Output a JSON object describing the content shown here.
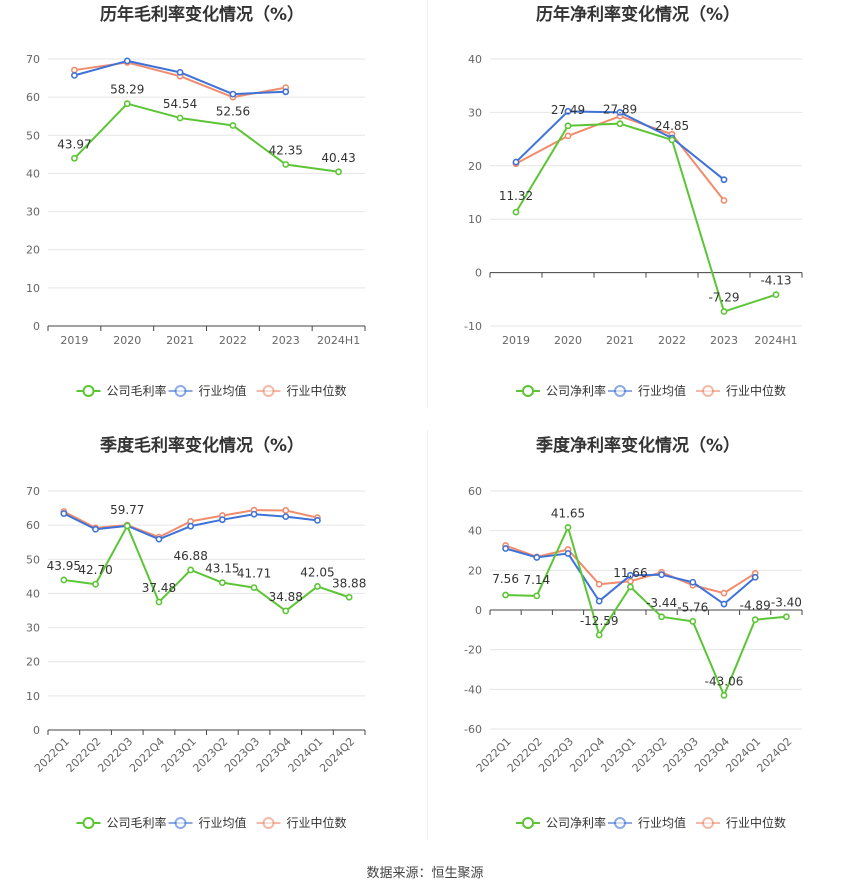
{
  "source_text": "数据来源：恒生聚源",
  "colors": {
    "company": "#5cc535",
    "industry_avg": "#3f72d9",
    "industry_median": "#f08c6c",
    "grid": "#e6e6e6",
    "axis": "#666666",
    "title": "#333333"
  },
  "chart_data": [
    {
      "type": "line",
      "title": "历年毛利率变化情况（%）",
      "categories": [
        "2019",
        "2020",
        "2021",
        "2022",
        "2023",
        "2024H1"
      ],
      "ylim": [
        0,
        70
      ],
      "yticks": [
        0,
        10,
        20,
        30,
        40,
        50,
        60,
        70
      ],
      "rotate_x": false,
      "series": [
        {
          "name": "公司毛利率",
          "key": "company",
          "values": [
            43.97,
            58.29,
            54.54,
            52.56,
            42.35,
            40.43
          ],
          "labels": [
            "43.97",
            "58.29",
            "54.54",
            "52.56",
            "42.35",
            "40.43"
          ]
        },
        {
          "name": "行业均值",
          "key": "industry_avg",
          "values": [
            65.7,
            69.5,
            66.5,
            60.8,
            61.4,
            null
          ]
        },
        {
          "name": "行业中位数",
          "key": "industry_median",
          "values": [
            67.1,
            69.1,
            65.5,
            60.0,
            62.5,
            null
          ]
        }
      ],
      "legend": [
        "公司毛利率",
        "行业均值",
        "行业中位数"
      ]
    },
    {
      "type": "line",
      "title": "历年净利率变化情况（%）",
      "categories": [
        "2019",
        "2020",
        "2021",
        "2022",
        "2023",
        "2024H1"
      ],
      "ylim": [
        -10,
        40
      ],
      "yticks": [
        -10,
        0,
        10,
        20,
        30,
        40
      ],
      "rotate_x": false,
      "series": [
        {
          "name": "公司净利率",
          "key": "company",
          "values": [
            11.32,
            27.49,
            27.89,
            24.85,
            -7.29,
            -4.13
          ],
          "labels": [
            "11.32",
            "27.49",
            "27.89",
            "24.85",
            "-7.29",
            "-4.13"
          ]
        },
        {
          "name": "行业均值",
          "key": "industry_avg",
          "values": [
            20.7,
            30.2,
            30.0,
            25.2,
            17.4,
            null
          ]
        },
        {
          "name": "行业中位数",
          "key": "industry_median",
          "values": [
            20.4,
            25.6,
            29.3,
            25.9,
            13.5,
            null
          ]
        }
      ],
      "legend": [
        "公司净利率",
        "行业均值",
        "行业中位数"
      ]
    },
    {
      "type": "line",
      "title": "季度毛利率变化情况（%）",
      "categories": [
        "2022Q1",
        "2022Q2",
        "2022Q3",
        "2022Q4",
        "2023Q1",
        "2023Q2",
        "2023Q3",
        "2023Q4",
        "2024Q1",
        "2024Q2"
      ],
      "ylim": [
        0,
        70
      ],
      "yticks": [
        0,
        10,
        20,
        30,
        40,
        50,
        60,
        70
      ],
      "rotate_x": true,
      "series": [
        {
          "name": "公司毛利率",
          "key": "company",
          "values": [
            43.95,
            42.7,
            59.77,
            37.48,
            46.88,
            43.15,
            41.71,
            34.88,
            42.05,
            38.88
          ],
          "labels": [
            "43.95",
            "42.70",
            "59.77",
            "37.48",
            "46.88",
            "43.15",
            "41.71",
            "34.88",
            "42.05",
            "38.88"
          ]
        },
        {
          "name": "行业均值",
          "key": "industry_avg",
          "values": [
            63.4,
            58.8,
            59.8,
            55.9,
            59.7,
            61.6,
            63.2,
            62.5,
            61.4,
            null
          ]
        },
        {
          "name": "行业中位数",
          "key": "industry_median",
          "values": [
            64.0,
            59.2,
            60.0,
            56.5,
            61.1,
            62.8,
            64.4,
            64.3,
            62.2,
            null
          ]
        }
      ],
      "legend": [
        "公司毛利率",
        "行业均值",
        "行业中位数"
      ]
    },
    {
      "type": "line",
      "title": "季度净利率变化情况（%）",
      "categories": [
        "2022Q1",
        "2022Q2",
        "2022Q3",
        "2022Q4",
        "2023Q1",
        "2023Q2",
        "2023Q3",
        "2023Q4",
        "2024Q1",
        "2024Q2"
      ],
      "ylim": [
        -60,
        60
      ],
      "yticks": [
        -60,
        -40,
        -20,
        0,
        20,
        40,
        60
      ],
      "rotate_x": true,
      "series": [
        {
          "name": "公司净利率",
          "key": "company",
          "values": [
            7.56,
            7.14,
            41.65,
            -12.59,
            11.66,
            -3.44,
            -5.76,
            -43.06,
            -4.89,
            -3.4
          ],
          "labels": [
            "7.56",
            "7.14",
            "41.65",
            "-12.59",
            "11.66",
            "-3.44",
            "-5.76",
            "-43.06",
            "-4.89",
            "-3.40"
          ]
        },
        {
          "name": "行业均值",
          "key": "industry_avg",
          "values": [
            31.0,
            26.5,
            28.5,
            4.5,
            17.5,
            17.8,
            14.0,
            3.0,
            16.5,
            null
          ]
        },
        {
          "name": "行业中位数",
          "key": "industry_median",
          "values": [
            32.5,
            26.8,
            30.5,
            13.0,
            14.5,
            19.0,
            12.5,
            8.5,
            18.5,
            null
          ]
        }
      ],
      "legend": [
        "公司净利率",
        "行业均值",
        "行业中位数"
      ]
    }
  ]
}
